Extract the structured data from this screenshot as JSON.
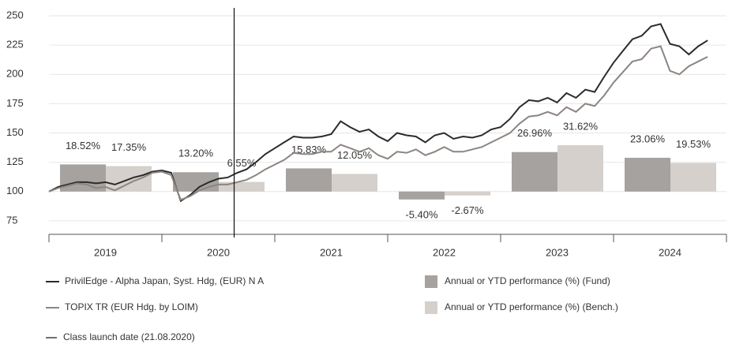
{
  "chart_data": {
    "type": "combo",
    "x": [
      2019,
      2019.083,
      2019.167,
      2019.25,
      2019.333,
      2019.417,
      2019.5,
      2019.583,
      2019.667,
      2019.75,
      2019.833,
      2019.917,
      2020,
      2020.083,
      2020.167,
      2020.25,
      2020.333,
      2020.417,
      2020.5,
      2020.583,
      2020.667,
      2020.75,
      2020.833,
      2020.917,
      2021,
      2021.083,
      2021.167,
      2021.25,
      2021.333,
      2021.417,
      2021.5,
      2021.583,
      2021.667,
      2021.75,
      2021.833,
      2021.917,
      2022,
      2022.083,
      2022.167,
      2022.25,
      2022.333,
      2022.417,
      2022.5,
      2022.583,
      2022.667,
      2022.75,
      2022.833,
      2022.917,
      2023,
      2023.083,
      2023.167,
      2023.25,
      2023.333,
      2023.417,
      2023.5,
      2023.583,
      2023.667,
      2023.75,
      2023.833,
      2023.917,
      2024,
      2024.083,
      2024.167,
      2024.25,
      2024.333,
      2024.417,
      2024.5,
      2024.583,
      2024.667,
      2024.75,
      2024.833
    ],
    "categories": [
      "2019",
      "2020",
      "2021",
      "2022",
      "2023",
      "2024"
    ],
    "series": [
      {
        "name": "PrivilEdge - Alpha Japan, Syst. Hdg, (EUR) N A",
        "type": "line",
        "color": "#2b2b2b",
        "values": [
          100,
          104,
          106,
          108,
          108,
          107,
          108,
          106,
          109,
          112,
          114,
          117,
          118,
          116,
          92,
          97,
          104,
          108,
          111,
          112,
          116,
          119,
          125,
          132,
          137,
          142,
          147,
          146,
          146,
          147,
          149,
          160,
          155,
          151,
          153,
          147,
          143,
          150,
          148,
          147,
          142,
          148,
          150,
          145,
          147,
          146,
          148,
          153,
          155,
          162,
          172,
          178,
          177,
          180,
          176,
          184,
          180,
          187,
          185,
          198,
          210,
          220,
          230,
          233,
          241,
          243,
          226,
          224,
          217,
          224,
          229
        ]
      },
      {
        "name": "TOPIX TR (EUR Hdg. by LOIM)",
        "type": "line",
        "color": "#8c8580",
        "values": [
          100,
          103,
          105,
          107,
          106,
          103,
          104,
          101,
          105,
          109,
          112,
          116,
          117,
          114,
          93,
          96,
          101,
          104,
          106,
          106,
          108,
          110,
          114,
          119,
          123,
          127,
          133,
          132,
          132,
          134,
          134,
          140,
          137,
          134,
          137,
          131,
          128,
          134,
          133,
          136,
          131,
          134,
          138,
          134,
          134,
          136,
          138,
          142,
          146,
          150,
          158,
          164,
          165,
          168,
          165,
          172,
          168,
          175,
          173,
          182,
          193,
          202,
          211,
          213,
          222,
          224,
          203,
          200,
          207,
          211,
          215
        ]
      },
      {
        "name": "Annual or YTD performance (%) (Fund)",
        "type": "bar",
        "axis": "y2",
        "color": "#a6a2a0",
        "values": [
          18.52,
          13.2,
          15.83,
          -5.4,
          26.96,
          23.06
        ],
        "value_labels": [
          "18.52%",
          "13.20%",
          "15.83%",
          "-5.40%",
          "26.96%",
          "23.06%"
        ]
      },
      {
        "name": "Annual or YTD performance (%) (Bench.)",
        "type": "bar",
        "axis": "y2",
        "color": "#d5d0cb",
        "values": [
          17.35,
          6.55,
          12.05,
          -2.67,
          31.62,
          19.53
        ],
        "value_labels": [
          "17.35%",
          "6.55%",
          "12.05%",
          "-2.67%",
          "31.62%",
          "19.53%"
        ]
      }
    ],
    "vline": {
      "x": 2020.64,
      "label": "Class launch date (21.08.2020)",
      "color": "#111111"
    },
    "xlim": [
      2019,
      2025
    ],
    "xticks": [
      2019,
      2020,
      2021,
      2022,
      2023,
      2024,
      2025
    ],
    "ylim": [
      63.5,
      250
    ],
    "yticks": [
      75,
      100,
      125,
      150,
      175,
      200,
      225,
      250
    ],
    "y2lim": [
      -29.2,
      120
    ],
    "grid": true
  }
}
